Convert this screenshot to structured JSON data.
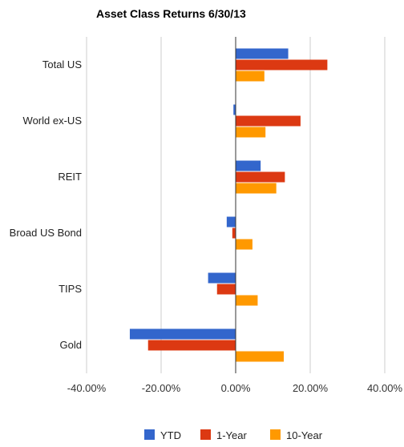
{
  "chart_data": {
    "type": "bar",
    "orientation": "horizontal",
    "title": "Asset Class Returns 6/30/13",
    "categories": [
      "Total US",
      "World ex-US",
      "REIT",
      "Broad US Bond",
      "TIPS",
      "Gold"
    ],
    "series": [
      {
        "name": "YTD",
        "color": "#3366cc",
        "values": [
          14.1,
          -0.6,
          6.7,
          -2.4,
          -7.4,
          -28.4
        ]
      },
      {
        "name": "1-Year",
        "color": "#dc3912",
        "values": [
          24.6,
          17.4,
          13.2,
          -0.9,
          -5.0,
          -23.5
        ]
      },
      {
        "name": "10-Year",
        "color": "#ff9900",
        "values": [
          7.7,
          8.0,
          10.9,
          4.5,
          5.9,
          12.9
        ]
      }
    ],
    "xlim": [
      -40,
      40
    ],
    "xticks": [
      "-40.00%",
      "-20.00%",
      "0.00%",
      "20.00%",
      "40.00%"
    ],
    "xtick_values": [
      -40,
      -20,
      0,
      20,
      40
    ],
    "grid": true,
    "legend_position": "bottom"
  }
}
